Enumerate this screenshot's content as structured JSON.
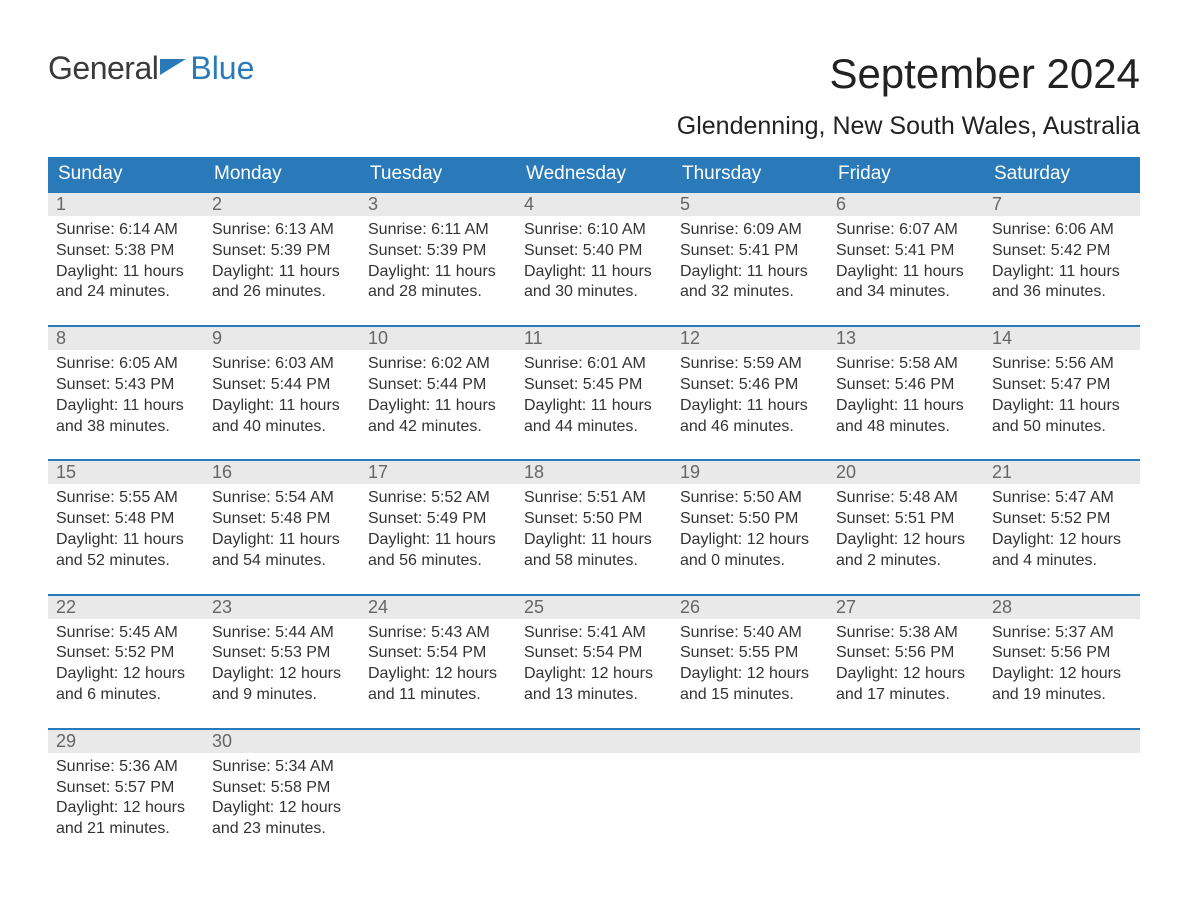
{
  "logo": {
    "text1": "General",
    "text2": "Blue"
  },
  "title": {
    "month_year": "September 2024",
    "location": "Glendenning, New South Wales, Australia"
  },
  "colors": {
    "header_bg": "#2a7ab9",
    "header_text": "#ffffff",
    "daynum_bg": "#e9e9e9",
    "daynum_text": "#666666",
    "week_border": "#2a7ab9",
    "body_text": "#333333",
    "logo_gray": "#3a3a3a",
    "logo_blue": "#2a7ab9"
  },
  "day_headers": [
    "Sunday",
    "Monday",
    "Tuesday",
    "Wednesday",
    "Thursday",
    "Friday",
    "Saturday"
  ],
  "days": [
    {
      "n": "1",
      "sunrise": "6:14 AM",
      "sunset": "5:38 PM",
      "daylight": "11 hours and 24 minutes."
    },
    {
      "n": "2",
      "sunrise": "6:13 AM",
      "sunset": "5:39 PM",
      "daylight": "11 hours and 26 minutes."
    },
    {
      "n": "3",
      "sunrise": "6:11 AM",
      "sunset": "5:39 PM",
      "daylight": "11 hours and 28 minutes."
    },
    {
      "n": "4",
      "sunrise": "6:10 AM",
      "sunset": "5:40 PM",
      "daylight": "11 hours and 30 minutes."
    },
    {
      "n": "5",
      "sunrise": "6:09 AM",
      "sunset": "5:41 PM",
      "daylight": "11 hours and 32 minutes."
    },
    {
      "n": "6",
      "sunrise": "6:07 AM",
      "sunset": "5:41 PM",
      "daylight": "11 hours and 34 minutes."
    },
    {
      "n": "7",
      "sunrise": "6:06 AM",
      "sunset": "5:42 PM",
      "daylight": "11 hours and 36 minutes."
    },
    {
      "n": "8",
      "sunrise": "6:05 AM",
      "sunset": "5:43 PM",
      "daylight": "11 hours and 38 minutes."
    },
    {
      "n": "9",
      "sunrise": "6:03 AM",
      "sunset": "5:44 PM",
      "daylight": "11 hours and 40 minutes."
    },
    {
      "n": "10",
      "sunrise": "6:02 AM",
      "sunset": "5:44 PM",
      "daylight": "11 hours and 42 minutes."
    },
    {
      "n": "11",
      "sunrise": "6:01 AM",
      "sunset": "5:45 PM",
      "daylight": "11 hours and 44 minutes."
    },
    {
      "n": "12",
      "sunrise": "5:59 AM",
      "sunset": "5:46 PM",
      "daylight": "11 hours and 46 minutes."
    },
    {
      "n": "13",
      "sunrise": "5:58 AM",
      "sunset": "5:46 PM",
      "daylight": "11 hours and 48 minutes."
    },
    {
      "n": "14",
      "sunrise": "5:56 AM",
      "sunset": "5:47 PM",
      "daylight": "11 hours and 50 minutes."
    },
    {
      "n": "15",
      "sunrise": "5:55 AM",
      "sunset": "5:48 PM",
      "daylight": "11 hours and 52 minutes."
    },
    {
      "n": "16",
      "sunrise": "5:54 AM",
      "sunset": "5:48 PM",
      "daylight": "11 hours and 54 minutes."
    },
    {
      "n": "17",
      "sunrise": "5:52 AM",
      "sunset": "5:49 PM",
      "daylight": "11 hours and 56 minutes."
    },
    {
      "n": "18",
      "sunrise": "5:51 AM",
      "sunset": "5:50 PM",
      "daylight": "11 hours and 58 minutes."
    },
    {
      "n": "19",
      "sunrise": "5:50 AM",
      "sunset": "5:50 PM",
      "daylight": "12 hours and 0 minutes."
    },
    {
      "n": "20",
      "sunrise": "5:48 AM",
      "sunset": "5:51 PM",
      "daylight": "12 hours and 2 minutes."
    },
    {
      "n": "21",
      "sunrise": "5:47 AM",
      "sunset": "5:52 PM",
      "daylight": "12 hours and 4 minutes."
    },
    {
      "n": "22",
      "sunrise": "5:45 AM",
      "sunset": "5:52 PM",
      "daylight": "12 hours and 6 minutes."
    },
    {
      "n": "23",
      "sunrise": "5:44 AM",
      "sunset": "5:53 PM",
      "daylight": "12 hours and 9 minutes."
    },
    {
      "n": "24",
      "sunrise": "5:43 AM",
      "sunset": "5:54 PM",
      "daylight": "12 hours and 11 minutes."
    },
    {
      "n": "25",
      "sunrise": "5:41 AM",
      "sunset": "5:54 PM",
      "daylight": "12 hours and 13 minutes."
    },
    {
      "n": "26",
      "sunrise": "5:40 AM",
      "sunset": "5:55 PM",
      "daylight": "12 hours and 15 minutes."
    },
    {
      "n": "27",
      "sunrise": "5:38 AM",
      "sunset": "5:56 PM",
      "daylight": "12 hours and 17 minutes."
    },
    {
      "n": "28",
      "sunrise": "5:37 AM",
      "sunset": "5:56 PM",
      "daylight": "12 hours and 19 minutes."
    },
    {
      "n": "29",
      "sunrise": "5:36 AM",
      "sunset": "5:57 PM",
      "daylight": "12 hours and 21 minutes."
    },
    {
      "n": "30",
      "sunrise": "5:34 AM",
      "sunset": "5:58 PM",
      "daylight": "12 hours and 23 minutes."
    }
  ],
  "labels": {
    "sunrise": "Sunrise:",
    "sunset": "Sunset:",
    "daylight": "Daylight:"
  },
  "layout": {
    "cols": 7,
    "rows": 5,
    "trailing_empty": 5
  }
}
